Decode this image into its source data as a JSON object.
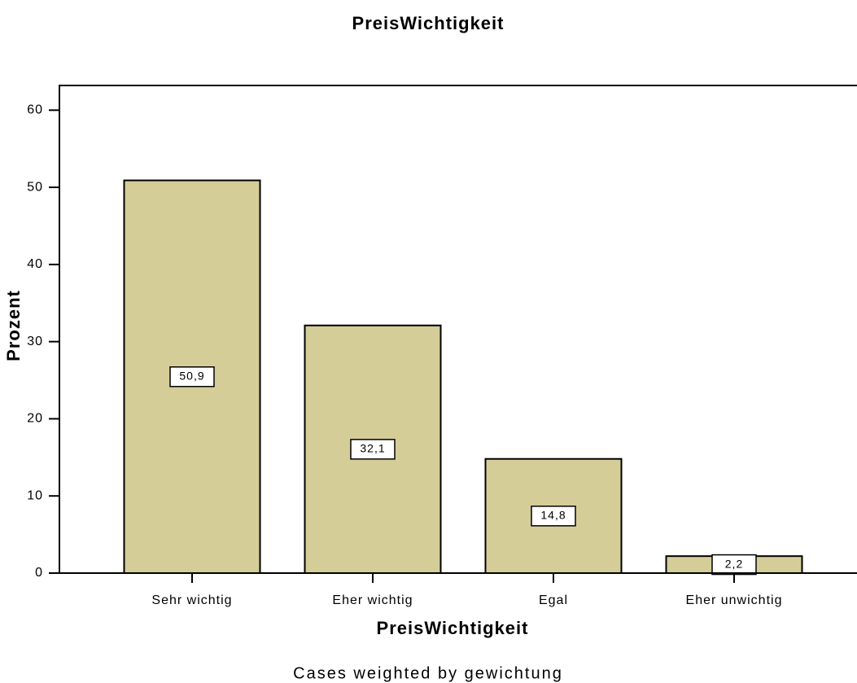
{
  "chart_data": {
    "type": "bar",
    "title": "PreisWichtigkeit",
    "x_label": "PreisWichtigkeit",
    "y_label": "Prozent",
    "footnote": "Cases weighted by gewichtung",
    "categories": [
      "Sehr wichtig",
      "Eher wichtig",
      "Egal",
      "Eher unwichtig"
    ],
    "values": [
      50.9,
      32.1,
      14.8,
      2.2
    ],
    "value_labels": [
      "50,9",
      "32,1",
      "14,8",
      "2,2"
    ],
    "color": "#d4cd98",
    "ylim": [
      0,
      63.2
    ],
    "yticks": [
      0,
      10,
      20,
      30,
      40,
      50,
      60
    ],
    "grid": false
  }
}
